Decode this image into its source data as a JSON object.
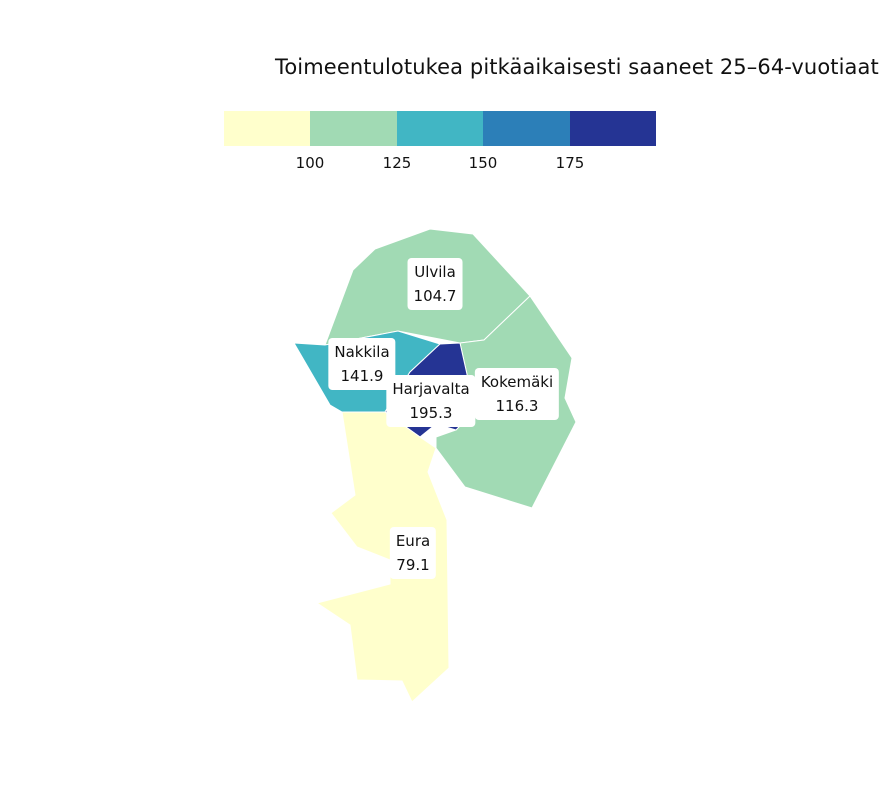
{
  "title": "Toimeentulotukea pitkäaikaisesti saaneet 25–64-vuotiaat",
  "legend": {
    "colors": [
      "#ffffcc",
      "#a1dab4",
      "#41b6c4",
      "#2c7fb8",
      "#253494"
    ],
    "ticks": [
      "100",
      "125",
      "150",
      "175"
    ]
  },
  "regions": [
    {
      "name": "Ulvila",
      "value": "104.7",
      "color": "#a1dab4"
    },
    {
      "name": "Nakkila",
      "value": "141.9",
      "color": "#41b6c4"
    },
    {
      "name": "Harjavalta",
      "value": "195.3",
      "color": "#253494"
    },
    {
      "name": "Kokemäki",
      "value": "116.3",
      "color": "#a1dab4"
    },
    {
      "name": "Eura",
      "value": "79.1",
      "color": "#ffffcc"
    }
  ]
}
